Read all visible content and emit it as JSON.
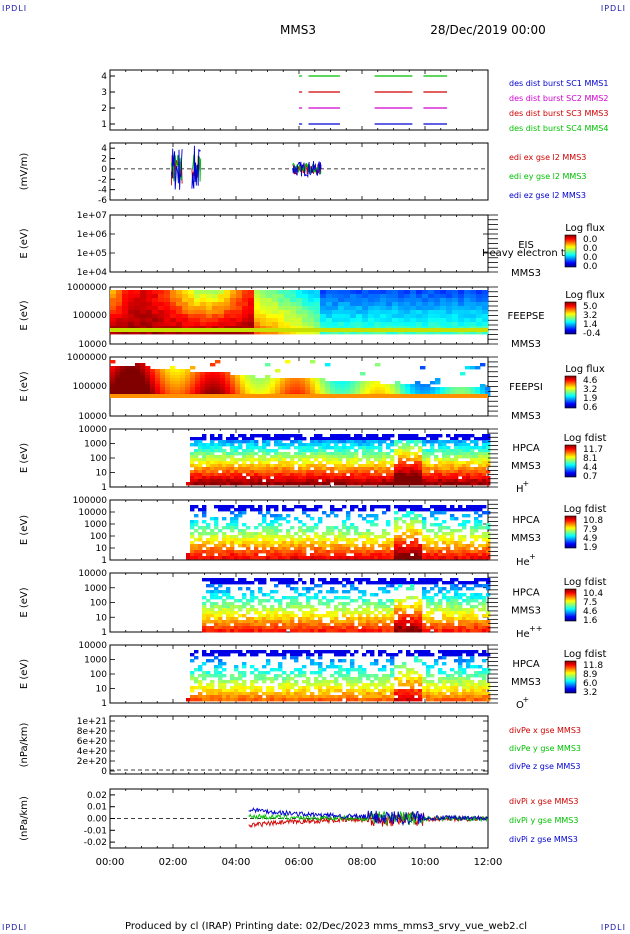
{
  "corners": {
    "tl": "IPDLI",
    "tr": "IPDLI",
    "bl": "IPDLI",
    "br": "IPDLI"
  },
  "header": {
    "spacecraft": "MMS3",
    "date": "28/Dec/2019 00:00"
  },
  "footer": {
    "text": "Produced by cl (IRAP)   Printing date: 02/Dec/2023   mms_mms3_srvy_vue_web2.cl"
  },
  "colors": {
    "red": "#d00000",
    "green": "#00c000",
    "blue": "#0000d0",
    "magenta": "#d000d0",
    "black": "#000000"
  },
  "chart_data": [
    {
      "type": "line",
      "id": "burst",
      "yticks": [
        "1",
        "2",
        "3",
        "4"
      ],
      "legend": [
        {
          "name": "des dist burst SC1 MMS1",
          "color": "#0000d0"
        },
        {
          "name": "des dist burst SC2 MMS2",
          "color": "#d000d0"
        },
        {
          "name": "des dist burst SC3 MMS3",
          "color": "#d00000"
        },
        {
          "name": "des dist burst SC4 MMS4",
          "color": "#00c000"
        }
      ],
      "intervals_hours": [
        [
          6.0,
          6.1
        ],
        [
          6.3,
          7.3
        ],
        [
          8.4,
          9.6
        ],
        [
          9.95,
          10.7
        ]
      ]
    },
    {
      "type": "line",
      "id": "edi",
      "ylabel": "(mV/m)",
      "yticks": [
        "4",
        "2",
        "0",
        "-2",
        "-4",
        "-6"
      ],
      "ylim": [
        -6,
        5
      ],
      "legend": [
        {
          "name": "edi ex gse l2 MMS3",
          "color": "#d00000"
        },
        {
          "name": "edi ey gse l2 MMS3",
          "color": "#00c000"
        },
        {
          "name": "edi ez gse l2 MMS3",
          "color": "#0000d0"
        }
      ]
    },
    {
      "type": "heatmap",
      "id": "eis",
      "ylabel": "E (eV)",
      "yticks": [
        "1e+07",
        "1e+06",
        "1e+05",
        "1e+04"
      ],
      "label_top": "EIS",
      "label_bottom": "MMS3",
      "overlap_text": "Heavy electron to",
      "cbar_title": "Log flux",
      "cbar_ticks": [
        "0.0",
        "0.0",
        "0.0",
        "0.0"
      ]
    },
    {
      "type": "heatmap",
      "id": "feepse",
      "ylabel": "E (eV)",
      "yticks": [
        "1000000",
        "100000",
        "10000"
      ],
      "label_top": "FEEPSE",
      "label_bottom": "MMS3",
      "cbar_title": "Log flux",
      "cbar_ticks": [
        "5.0",
        "3.2",
        "1.4",
        "-0.4"
      ]
    },
    {
      "type": "heatmap",
      "id": "feepsi",
      "ylabel": "E (eV)",
      "yticks": [
        "1000000",
        "100000",
        "10000"
      ],
      "label_top": "FEEPSI",
      "label_bottom": "MMS3",
      "cbar_title": "Log flux",
      "cbar_ticks": [
        "4.6",
        "3.2",
        "1.9",
        "0.6"
      ]
    },
    {
      "type": "heatmap",
      "id": "hpca_h",
      "ylabel": "E (eV)",
      "yticks": [
        "10000",
        "1000",
        "100",
        "10",
        "1"
      ],
      "label_top": "HPCA",
      "label_bottom": "MMS3",
      "species": "H",
      "charge": "+",
      "cbar_title": "Log fdist",
      "cbar_ticks": [
        "11.7",
        "8.1",
        "4.4",
        "0.7"
      ]
    },
    {
      "type": "heatmap",
      "id": "hpca_he",
      "ylabel": "E (eV)",
      "yticks": [
        "100000",
        "10000",
        "1000",
        "100",
        "10",
        "1"
      ],
      "label_top": "HPCA",
      "label_bottom": "MMS3",
      "species": "He",
      "charge": "+",
      "cbar_title": "Log fdist",
      "cbar_ticks": [
        "10.8",
        "7.9",
        "4.9",
        "1.9"
      ]
    },
    {
      "type": "heatmap",
      "id": "hpca_hepp",
      "ylabel": "E (eV)",
      "yticks": [
        "10000",
        "1000",
        "100",
        "10",
        "1"
      ],
      "label_top": "HPCA",
      "label_bottom": "MMS3",
      "species": "He",
      "charge": "++",
      "cbar_title": "Log fdist",
      "cbar_ticks": [
        "10.4",
        "7.5",
        "4.6",
        "1.6"
      ]
    },
    {
      "type": "heatmap",
      "id": "hpca_o",
      "ylabel": "E (eV)",
      "yticks": [
        "10000",
        "1000",
        "100",
        "10",
        "1"
      ],
      "label_top": "HPCA",
      "label_bottom": "MMS3",
      "species": "O",
      "charge": "+",
      "cbar_title": "Log fdist",
      "cbar_ticks": [
        "11.8",
        "8.9",
        "6.0",
        "3.2"
      ]
    },
    {
      "type": "line",
      "id": "divpe",
      "ylabel": "(nPa/km)",
      "yticks": [
        "1e+21",
        "8e+20",
        "6e+20",
        "4e+20",
        "2e+20",
        "0"
      ],
      "ylim": [
        0,
        1e+21
      ],
      "legend": [
        {
          "name": "divPe x gse MMS3",
          "color": "#d00000"
        },
        {
          "name": "divPe y gse MMS3",
          "color": "#00c000"
        },
        {
          "name": "divPe z gse MMS3",
          "color": "#0000d0"
        }
      ]
    },
    {
      "type": "line",
      "id": "divpi",
      "ylabel": "(nPa/km)",
      "yticks": [
        "0.02",
        "0.01",
        "0.00",
        "-0.01",
        "-0.02"
      ],
      "ylim": [
        -0.025,
        0.025
      ],
      "legend": [
        {
          "name": "divPi x gse MMS3",
          "color": "#d00000"
        },
        {
          "name": "divPi y gse MMS3",
          "color": "#00c000"
        },
        {
          "name": "divPi z gse MMS3",
          "color": "#0000d0"
        }
      ]
    }
  ],
  "xaxis": {
    "ticks": [
      "00:00",
      "02:00",
      "04:00",
      "06:00",
      "08:00",
      "10:00",
      "12:00"
    ],
    "range_hours": [
      0,
      12
    ]
  }
}
